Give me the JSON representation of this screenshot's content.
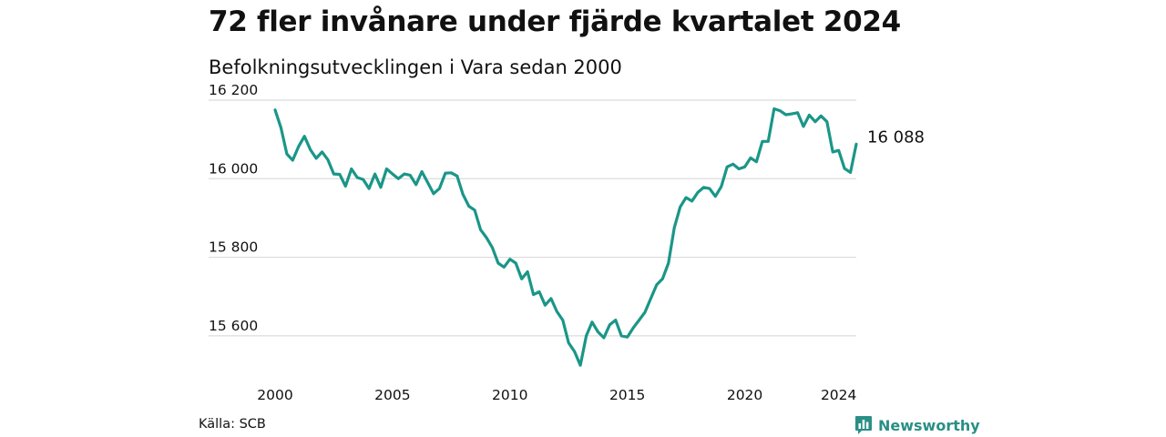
{
  "title": "72 fler invånare under fjärde kvartalet 2024",
  "subtitle": "Befolkningsutvecklingen i Vara sedan 2000",
  "source": "Källa: SCB",
  "brand": "Newsworthy",
  "colors": {
    "line": "#1a9688",
    "grid": "#dcdcdc",
    "brand": "#2a8f86"
  },
  "chart_data": {
    "type": "line",
    "title": "72 fler invånare under fjärde kvartalet 2024",
    "subtitle": "Befolkningsutvecklingen i Vara sedan 2000",
    "x_ticks": [
      {
        "value": 2000,
        "label": "2000"
      },
      {
        "value": 2005,
        "label": "2005"
      },
      {
        "value": 2010,
        "label": "2010"
      },
      {
        "value": 2015,
        "label": "2015"
      },
      {
        "value": 2020,
        "label": "2020"
      },
      {
        "value": 2024,
        "label": "2024"
      }
    ],
    "y_ticks": [
      {
        "value": 15600,
        "label": "15 600"
      },
      {
        "value": 15800,
        "label": "15 800"
      },
      {
        "value": 16000,
        "label": "16 000"
      },
      {
        "value": 16200,
        "label": "16 200"
      }
    ],
    "xlim": [
      2000,
      2024.75
    ],
    "ylim": [
      15500,
      16200
    ],
    "grid": true,
    "end_label": "16 088",
    "series": [
      {
        "frequency": "quarterly",
        "x_start": "2000 Q1",
        "values": [
          16175,
          16130,
          16063,
          16047,
          16082,
          16108,
          16074,
          16052,
          16068,
          16048,
          16012,
          16011,
          15981,
          16025,
          16003,
          15998,
          15975,
          16012,
          15978,
          16025,
          16012,
          16000,
          16012,
          16009,
          15985,
          16018,
          15990,
          15962,
          15975,
          16014,
          16015,
          16007,
          15960,
          15930,
          15920,
          15870,
          15850,
          15825,
          15785,
          15775,
          15795,
          15785,
          15745,
          15763,
          15705,
          15712,
          15678,
          15695,
          15662,
          15640,
          15582,
          15560,
          15525,
          15600,
          15635,
          15610,
          15595,
          15628,
          15640,
          15600,
          15597,
          15620,
          15640,
          15660,
          15695,
          15730,
          15745,
          15785,
          15875,
          15928,
          15952,
          15943,
          15965,
          15978,
          15975,
          15955,
          15980,
          16030,
          16037,
          16025,
          16030,
          16053,
          16043,
          16095,
          16095,
          16178,
          16173,
          16163,
          16165,
          16168,
          16133,
          16162,
          16145,
          16160,
          16145,
          16068,
          16072,
          16026,
          16016,
          16088
        ]
      }
    ]
  }
}
